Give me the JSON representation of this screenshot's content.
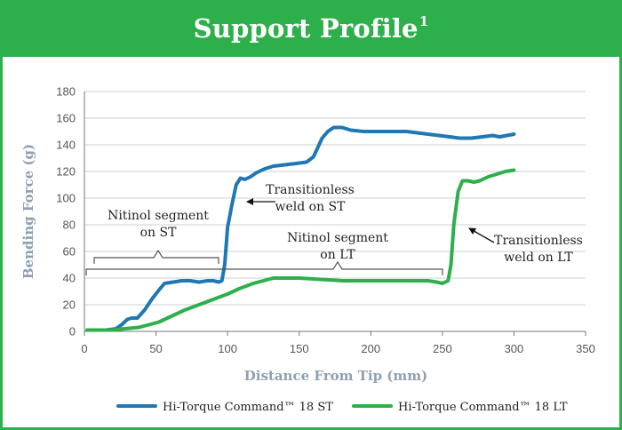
{
  "banner": {
    "title": "Support Profile",
    "superscript": "1"
  },
  "chart_data": {
    "type": "line",
    "xlabel": "Distance From Tip (mm)",
    "ylabel": "Bending Force (g)",
    "xlim": [
      0,
      350
    ],
    "ylim": [
      0,
      180
    ],
    "x_ticks": [
      0,
      50,
      100,
      150,
      200,
      250,
      300,
      350
    ],
    "y_ticks": [
      0,
      20,
      40,
      60,
      80,
      100,
      120,
      140,
      160,
      180
    ],
    "grid": "horizontal",
    "legend_position": "bottom",
    "series": [
      {
        "name": "Hi-Torque Command™ 18 ST",
        "color": "#1f77b4",
        "points": [
          [
            2,
            1
          ],
          [
            15,
            1
          ],
          [
            22,
            2
          ],
          [
            26,
            5
          ],
          [
            30,
            9
          ],
          [
            33,
            10
          ],
          [
            37,
            10
          ],
          [
            42,
            16
          ],
          [
            47,
            24
          ],
          [
            52,
            31
          ],
          [
            56,
            36
          ],
          [
            62,
            37
          ],
          [
            68,
            38
          ],
          [
            74,
            38
          ],
          [
            80,
            37
          ],
          [
            86,
            38
          ],
          [
            90,
            38
          ],
          [
            94,
            37
          ],
          [
            96,
            38
          ],
          [
            98,
            50
          ],
          [
            100,
            78
          ],
          [
            103,
            95
          ],
          [
            106,
            110
          ],
          [
            109,
            115
          ],
          [
            112,
            114
          ],
          [
            116,
            116
          ],
          [
            120,
            119
          ],
          [
            126,
            122
          ],
          [
            132,
            124
          ],
          [
            140,
            125
          ],
          [
            148,
            126
          ],
          [
            155,
            127
          ],
          [
            160,
            131
          ],
          [
            163,
            138
          ],
          [
            166,
            145
          ],
          [
            170,
            150
          ],
          [
            174,
            153
          ],
          [
            180,
            153
          ],
          [
            186,
            151
          ],
          [
            195,
            150
          ],
          [
            210,
            150
          ],
          [
            225,
            150
          ],
          [
            240,
            148
          ],
          [
            255,
            146
          ],
          [
            262,
            145
          ],
          [
            270,
            145
          ],
          [
            278,
            146
          ],
          [
            285,
            147
          ],
          [
            290,
            146
          ],
          [
            295,
            147
          ],
          [
            300,
            148
          ]
        ]
      },
      {
        "name": "Hi-Torque Command™ 18 LT",
        "color": "#2db04b",
        "points": [
          [
            2,
            1
          ],
          [
            20,
            1
          ],
          [
            28,
            2
          ],
          [
            38,
            3
          ],
          [
            45,
            5
          ],
          [
            52,
            7
          ],
          [
            60,
            11
          ],
          [
            70,
            16
          ],
          [
            80,
            20
          ],
          [
            90,
            24
          ],
          [
            100,
            28
          ],
          [
            108,
            32
          ],
          [
            118,
            36
          ],
          [
            125,
            38
          ],
          [
            132,
            40
          ],
          [
            140,
            40
          ],
          [
            150,
            40
          ],
          [
            165,
            39
          ],
          [
            180,
            38
          ],
          [
            195,
            38
          ],
          [
            210,
            38
          ],
          [
            225,
            38
          ],
          [
            240,
            38
          ],
          [
            246,
            37
          ],
          [
            250,
            36
          ],
          [
            254,
            38
          ],
          [
            256,
            50
          ],
          [
            258,
            80
          ],
          [
            261,
            105
          ],
          [
            264,
            113
          ],
          [
            268,
            113
          ],
          [
            272,
            112
          ],
          [
            276,
            113
          ],
          [
            282,
            116
          ],
          [
            288,
            118
          ],
          [
            294,
            120
          ],
          [
            300,
            121
          ]
        ]
      }
    ],
    "annotations": {
      "nitinol_st": [
        "Nitinol segment",
        "on ST"
      ],
      "nitinol_lt": [
        "Nitinol segment",
        "on LT"
      ],
      "trans_st": [
        "Transitionless",
        "weld on ST"
      ],
      "trans_lt": [
        "Transitionless",
        "weld on LT"
      ]
    }
  }
}
